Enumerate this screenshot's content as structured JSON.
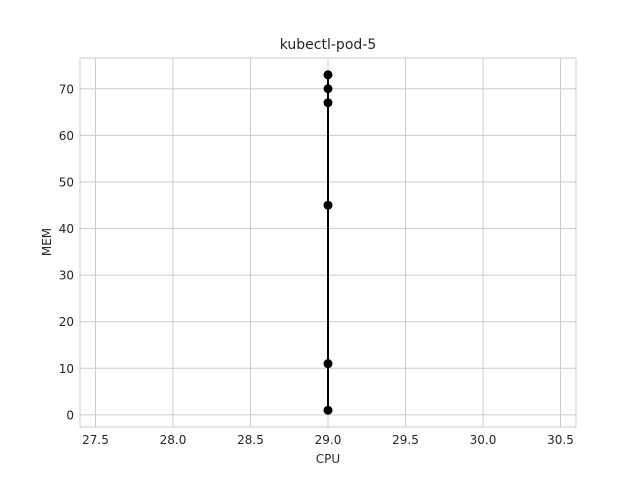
{
  "chart_data": {
    "type": "line",
    "title": "kubectl-pod-5",
    "xlabel": "CPU",
    "ylabel": "MEM",
    "xlim": [
      27.4,
      30.6
    ],
    "ylim": [
      -2.6,
      76.6
    ],
    "x_ticks": [
      27.5,
      28.0,
      28.5,
      29.0,
      29.5,
      30.0,
      30.5
    ],
    "y_ticks": [
      0,
      10,
      20,
      30,
      40,
      50,
      60,
      70
    ],
    "grid": true,
    "series": [
      {
        "color": "#000000",
        "marker": "circle",
        "points": [
          {
            "x": 29.0,
            "y": 1
          },
          {
            "x": 29.0,
            "y": 11
          },
          {
            "x": 29.0,
            "y": 45
          },
          {
            "x": 29.0,
            "y": 67
          },
          {
            "x": 29.0,
            "y": 70
          },
          {
            "x": 29.0,
            "y": 73
          }
        ]
      }
    ]
  }
}
